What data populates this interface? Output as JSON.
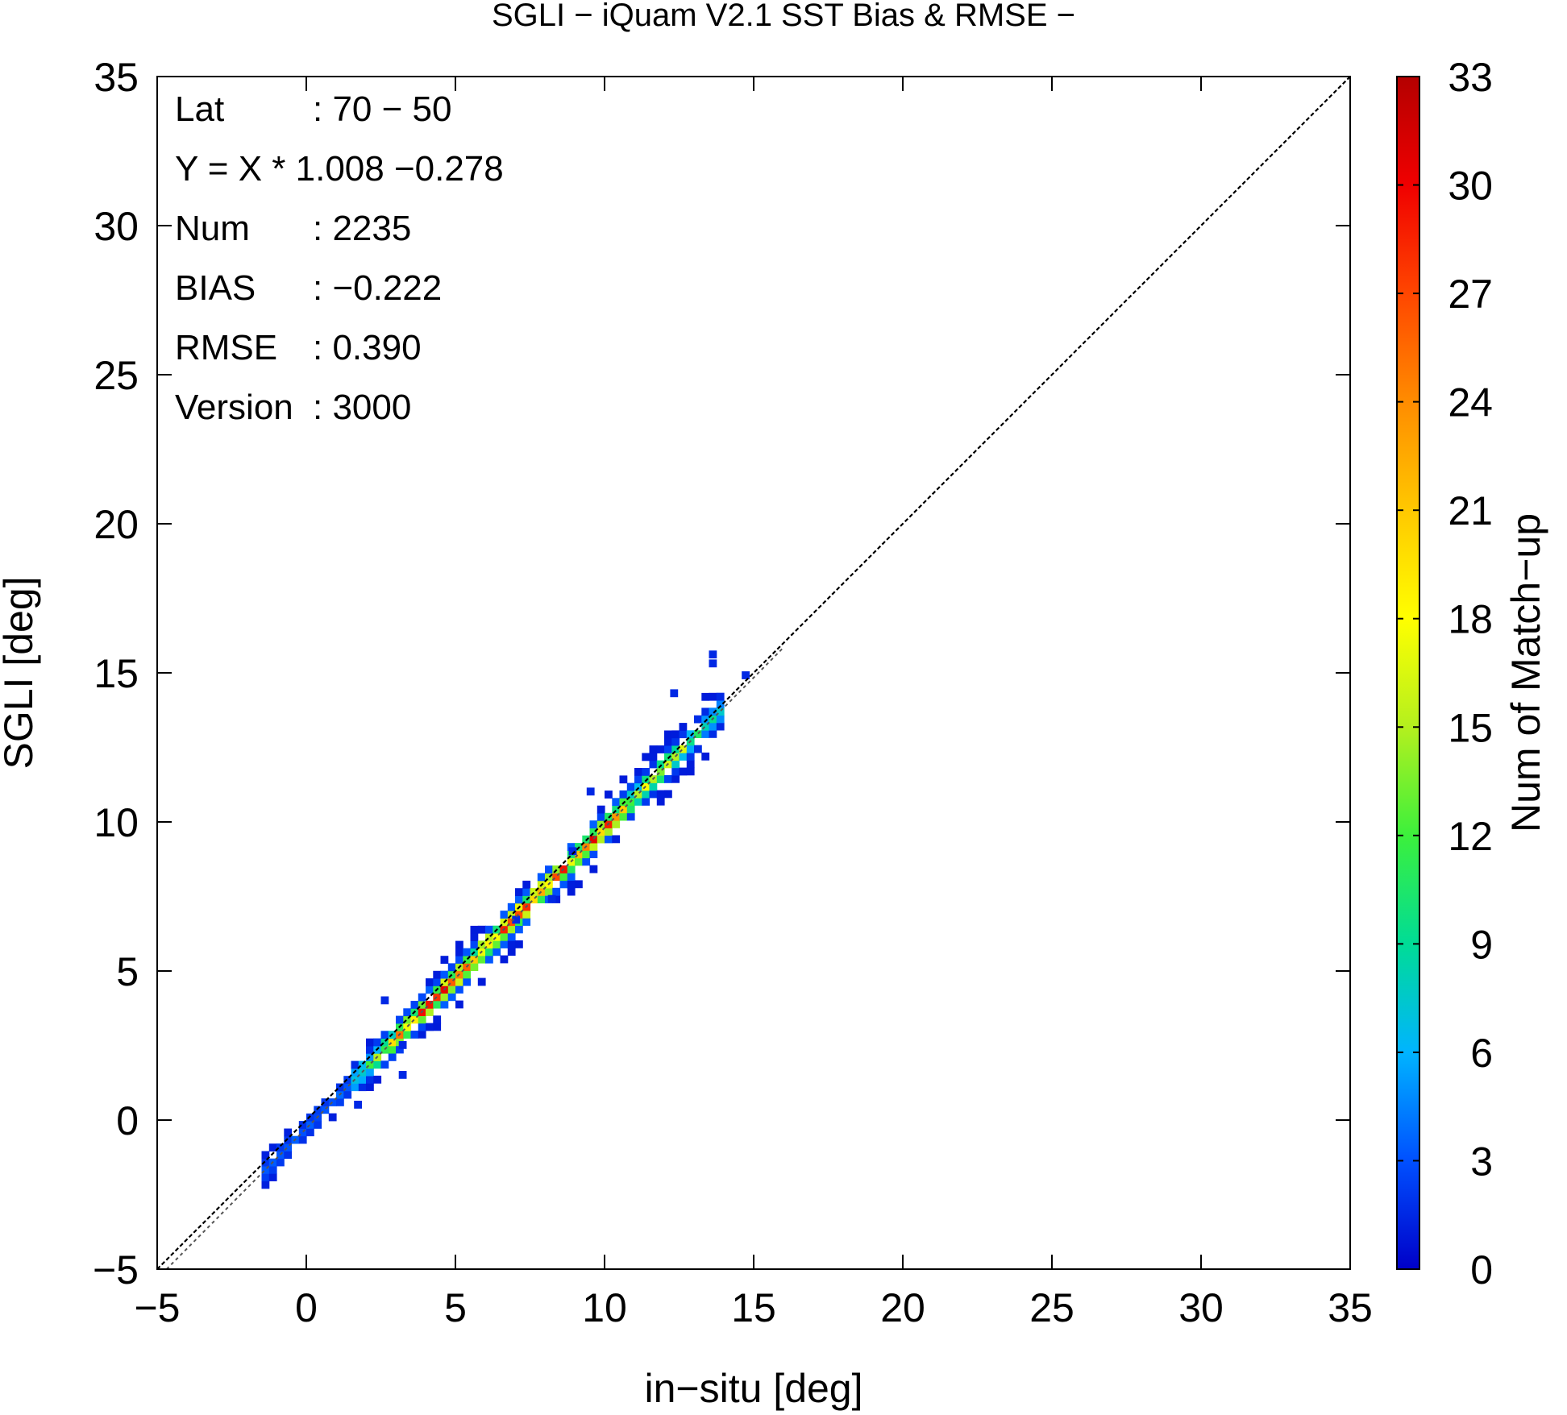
{
  "chart_data": {
    "type": "heatmap",
    "title": "SGLI − iQuam V2.1 SST Bias & RMSE  −",
    "xlabel": "in−situ [deg]",
    "ylabel": "SGLI [deg]",
    "xlim": [
      -5,
      35
    ],
    "ylim": [
      -5,
      35
    ],
    "xticks": [
      "−5",
      "0",
      "5",
      "10",
      "15",
      "20",
      "25",
      "30",
      "35"
    ],
    "yticks": [
      "−5",
      "0",
      "5",
      "10",
      "15",
      "20",
      "25",
      "30",
      "35"
    ],
    "colorbar": {
      "label": "Num of Match−up",
      "range": [
        0,
        33
      ],
      "ticks": [
        "0",
        "3",
        "6",
        "9",
        "12",
        "15",
        "18",
        "21",
        "24",
        "27",
        "30",
        "33"
      ],
      "colors": [
        "#0000c8",
        "#0050ff",
        "#00b4ff",
        "#00dc96",
        "#3cf03c",
        "#b4f01e",
        "#ffff00",
        "#ffc800",
        "#ff8c00",
        "#ff4600",
        "#f00000",
        "#b40000"
      ]
    },
    "stats": [
      {
        "label": "Lat",
        "value": ": 70 − 50"
      },
      {
        "label": "Y = X * 1.008 −0.278",
        "value": ""
      },
      {
        "label": "Num",
        "value": ": 2235"
      },
      {
        "label": "BIAS",
        "value": ": −0.222"
      },
      {
        "label": "RMSE",
        "value": ": 0.390"
      },
      {
        "label": "Version",
        "value": ": 3000"
      }
    ],
    "one_to_one_line": true,
    "regression": {
      "slope": 1.008,
      "intercept": -0.278
    },
    "cluster": {
      "x_range": [
        -1.5,
        13.8
      ],
      "density_peak_counts": 30
    },
    "outliers": [
      [
        13.5,
        15.5
      ],
      [
        13.5,
        15.2
      ],
      [
        12.2,
        14.2
      ],
      [
        2.5,
        3.9
      ],
      [
        3.1,
        1.4
      ],
      [
        1.6,
        0.4
      ],
      [
        9.4,
        10.9
      ],
      [
        8.8,
        8.9
      ],
      [
        14.6,
        14.8
      ],
      [
        8.1,
        7.3
      ],
      [
        6.9,
        6.6
      ],
      [
        3.1,
        2.4
      ]
    ]
  }
}
